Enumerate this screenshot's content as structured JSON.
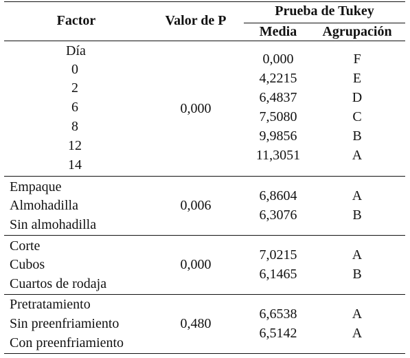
{
  "header": {
    "factor": "Factor",
    "p_value": "Valor de P",
    "tukey": "Prueba de Tukey",
    "media": "Media",
    "agrupacion": "Agrupación"
  },
  "groups": [
    {
      "factor": "Día",
      "levels": [
        "0",
        "2",
        "6",
        "8",
        "12",
        "14"
      ],
      "p": "0,000",
      "media": [
        "0,000",
        "4,2215",
        "6,4837",
        "7,5080",
        "9,9856",
        "11,3051"
      ],
      "agrup": [
        "F",
        "E",
        "D",
        "C",
        "B",
        "A"
      ]
    },
    {
      "factor": "Empaque",
      "levels": [
        "Almohadilla",
        "Sin almohadilla"
      ],
      "p": "0,006",
      "media": [
        "6,8604",
        "6,3076"
      ],
      "agrup": [
        "A",
        "B"
      ]
    },
    {
      "factor": "Corte",
      "levels": [
        "Cubos",
        "Cuartos de rodaja"
      ],
      "p": "0,000",
      "media": [
        "7,0215",
        "6,1465"
      ],
      "agrup": [
        "A",
        "B"
      ]
    },
    {
      "factor": "Pretratamiento",
      "levels": [
        "Sin preenfriamiento",
        "Con preenfriamiento"
      ],
      "p": "0,480",
      "media": [
        "6,6538",
        "6,5142"
      ],
      "agrup": [
        "A",
        "A"
      ]
    }
  ]
}
